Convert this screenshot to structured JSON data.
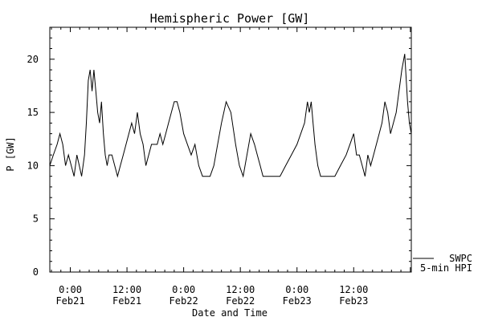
{
  "chart_data": {
    "type": "line",
    "title": "Hemispheric Power [GW]",
    "xlabel": "Date and Time",
    "ylabel": "P [GW]",
    "ylim": [
      0,
      23
    ],
    "xlim_hours": [
      -2.17,
      36.1
    ],
    "yticks": [
      0,
      5,
      10,
      15,
      20
    ],
    "xticks": [
      {
        "hour": 0,
        "time": "0:00",
        "date": "Feb21"
      },
      {
        "hour": 6,
        "time": "12:00",
        "date": "Feb21"
      },
      {
        "hour": 12,
        "time": "0:00",
        "date": "Feb22"
      },
      {
        "hour": 18,
        "time": "12:00",
        "date": "Feb22"
      },
      {
        "hour": 24,
        "time": "0:00",
        "date": "Feb23"
      },
      {
        "hour": 30,
        "time": "12:00",
        "date": "Feb23"
      }
    ],
    "legend": {
      "position": "bottom-right",
      "labels": [
        "SWPC",
        "5-min HPI"
      ]
    },
    "series": [
      {
        "name": "5-min HPI",
        "x": [
          -2.17,
          -1.8,
          -1.4,
          -1.1,
          -0.8,
          -0.5,
          -0.2,
          0.1,
          0.4,
          0.7,
          0.95,
          1.2,
          1.5,
          1.7,
          1.9,
          2.1,
          2.3,
          2.5,
          2.7,
          2.9,
          3.1,
          3.3,
          3.5,
          3.7,
          3.9,
          4.1,
          4.4,
          4.7,
          5.0,
          5.3,
          5.6,
          5.9,
          6.2,
          6.5,
          6.8,
          7.1,
          7.4,
          7.7,
          8.0,
          8.3,
          8.6,
          8.9,
          9.2,
          9.5,
          9.8,
          10.1,
          10.4,
          10.7,
          11.0,
          11.3,
          11.6,
          12.0,
          12.4,
          12.8,
          13.2,
          13.6,
          14.0,
          14.4,
          14.8,
          15.2,
          15.6,
          16.0,
          16.5,
          17.0,
          17.5,
          17.9,
          18.3,
          18.7,
          19.1,
          19.5,
          19.8,
          20.1,
          20.4,
          20.7,
          21.0,
          21.3,
          21.7,
          22.2,
          22.8,
          23.4,
          24.0,
          24.4,
          24.8,
          25.1,
          25.3,
          25.5,
          25.7,
          25.9,
          26.2,
          26.5,
          26.9,
          27.4,
          28.0,
          28.6,
          29.2,
          29.6,
          30.0,
          30.3,
          30.6,
          30.9,
          31.2,
          31.5,
          31.8,
          32.1,
          32.4,
          32.7,
          33.0,
          33.3,
          33.6,
          33.9,
          34.2,
          34.5,
          34.8,
          35.1,
          35.4,
          35.7,
          35.9,
          36.1
        ],
        "y": [
          10,
          11,
          12,
          13,
          12,
          10,
          11,
          10,
          9,
          11,
          10,
          9,
          11,
          14,
          18,
          19,
          17,
          19,
          17,
          15,
          14,
          16,
          13,
          11,
          10,
          11,
          11,
          10,
          9,
          10,
          11,
          12,
          13,
          14,
          13,
          15,
          13,
          12,
          10,
          11,
          12,
          12,
          12,
          13,
          12,
          13,
          14,
          15,
          16,
          16,
          15,
          13,
          12,
          11,
          12,
          10,
          9,
          9,
          9,
          10,
          12,
          14,
          16,
          15,
          12,
          10,
          9,
          11,
          13,
          12,
          11,
          10,
          9,
          9,
          9,
          9,
          9,
          9,
          10,
          11,
          12,
          13,
          14,
          16,
          15,
          16,
          14,
          12,
          10,
          9,
          9,
          9,
          9,
          10,
          11,
          12,
          13,
          11,
          11,
          10,
          9,
          11,
          10,
          11,
          12,
          13,
          14,
          16,
          15,
          13,
          14,
          15,
          17,
          19,
          20.5,
          16,
          14,
          13
        ]
      }
    ]
  }
}
